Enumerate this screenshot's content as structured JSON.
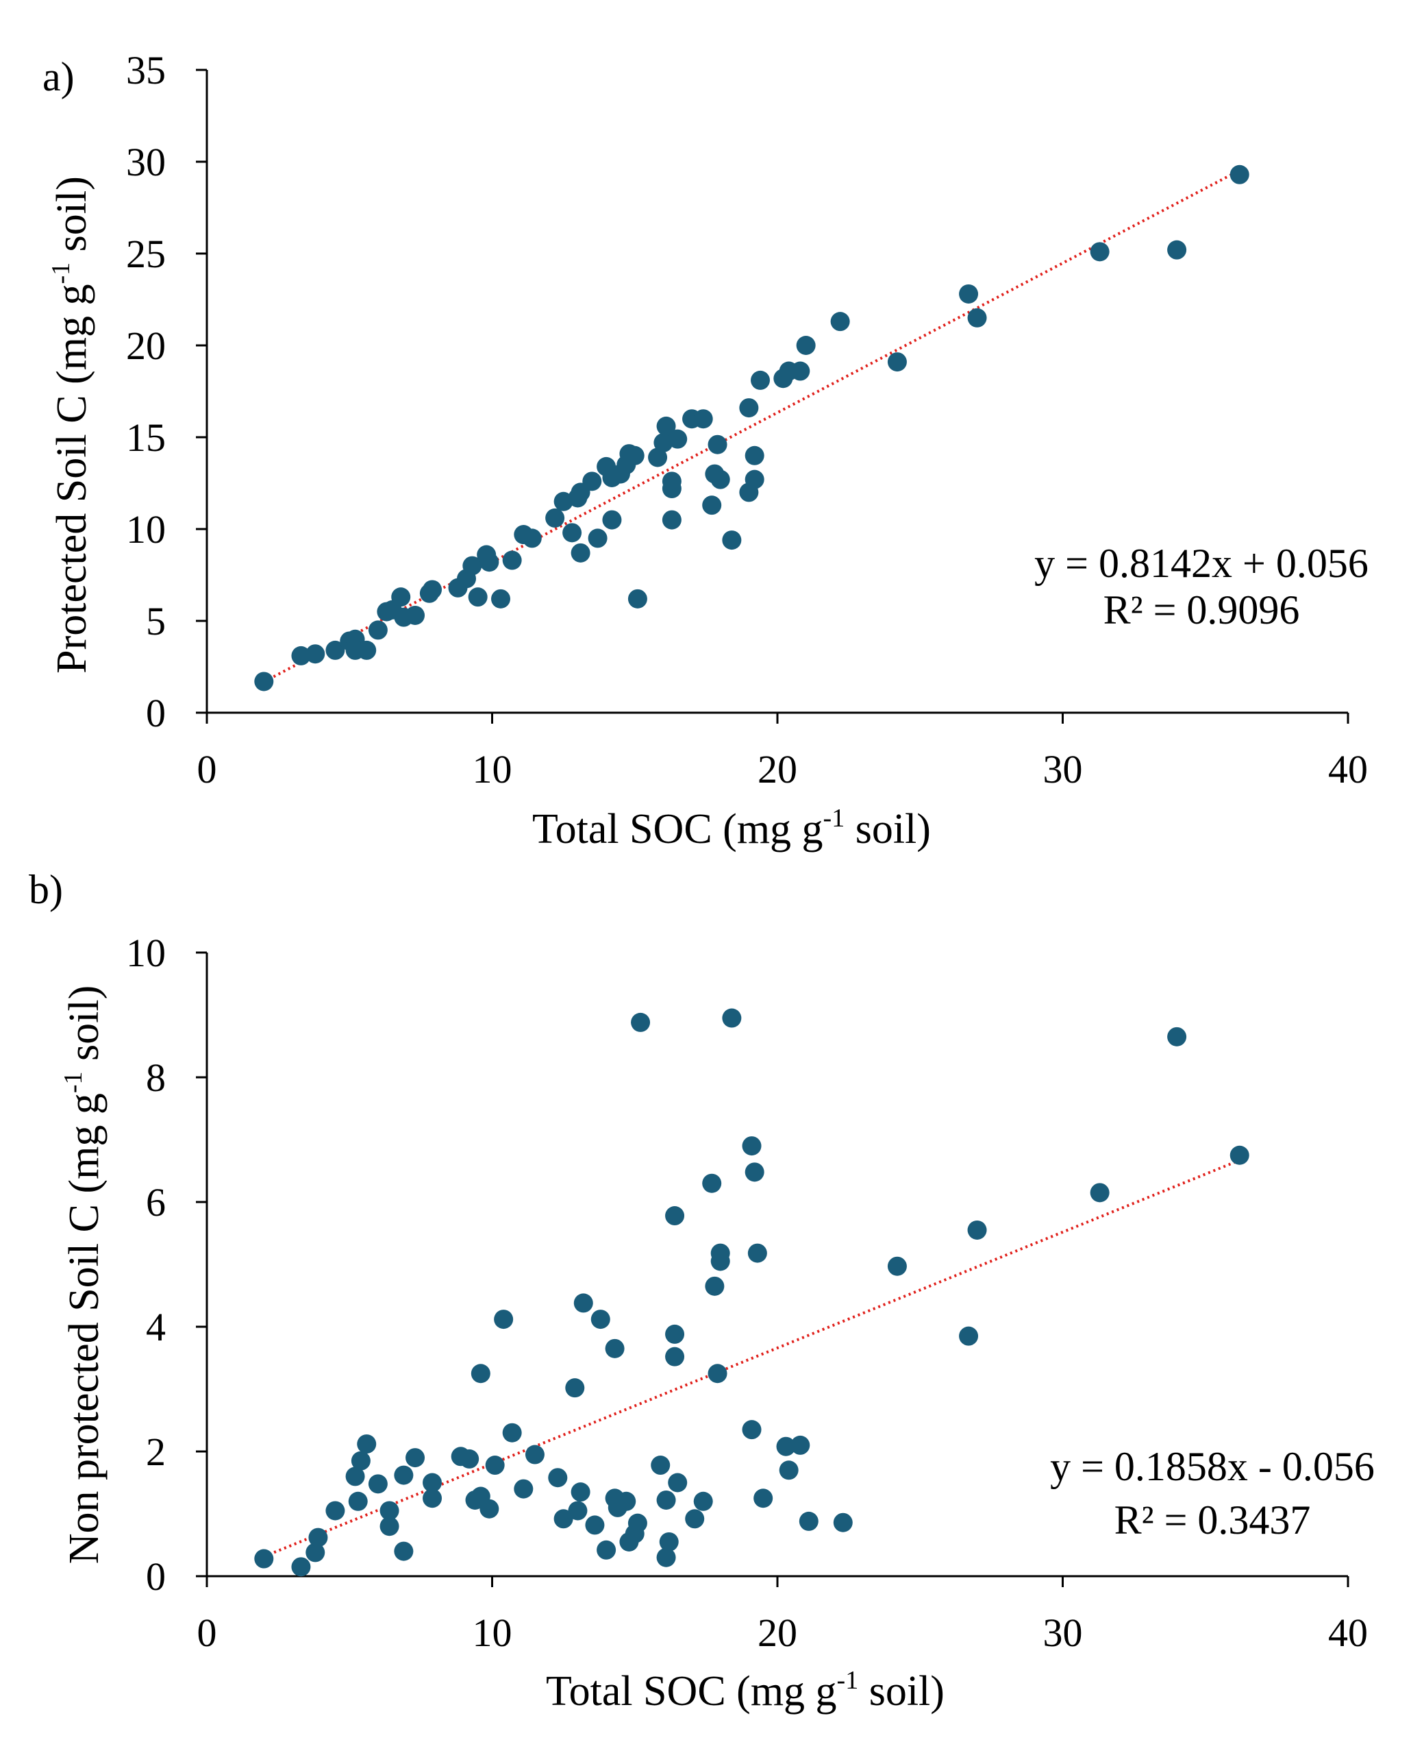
{
  "chart_data": [
    {
      "type": "scatter",
      "panel_label": "a)",
      "xlabel_pre": "Total SOC (mg g",
      "xlabel_sup": "-1",
      "xlabel_post": " soil)",
      "ylabel_pre": "Protected Soil C (mg g",
      "ylabel_sup": "-1",
      "ylabel_post": " soil)",
      "xlim": [
        0,
        40
      ],
      "ylim": [
        0,
        35
      ],
      "xticks": [
        "0",
        "10",
        "20",
        "30",
        "40"
      ],
      "yticks": [
        "0",
        "5",
        "10",
        "15",
        "20",
        "25",
        "30",
        "35"
      ],
      "marker_color": "#1a5c7a",
      "trendline_color": "#e0201b",
      "trendline": {
        "slope": 0.8142,
        "intercept": 0.056,
        "x_range": [
          2,
          36.2
        ]
      },
      "equation": "y = 0.8142x + 0.056",
      "r_squared": "R² = 0.9096",
      "points": [
        [
          2,
          1.7
        ],
        [
          3.3,
          3.1
        ],
        [
          3.8,
          3.2
        ],
        [
          4.5,
          3.4
        ],
        [
          5,
          3.9
        ],
        [
          5.2,
          4.0
        ],
        [
          5.2,
          3.4
        ],
        [
          5.6,
          3.4
        ],
        [
          6,
          4.5
        ],
        [
          6.3,
          5.5
        ],
        [
          6.5,
          5.6
        ],
        [
          6.8,
          6.3
        ],
        [
          6.9,
          5.2
        ],
        [
          7.3,
          5.3
        ],
        [
          7.8,
          6.5
        ],
        [
          7.9,
          6.7
        ],
        [
          8.8,
          6.8
        ],
        [
          9.1,
          7.3
        ],
        [
          9.3,
          8.0
        ],
        [
          9.5,
          6.3
        ],
        [
          9.8,
          8.6
        ],
        [
          9.9,
          8.2
        ],
        [
          10.3,
          6.2
        ],
        [
          10.7,
          8.3
        ],
        [
          11.1,
          9.7
        ],
        [
          11.4,
          9.5
        ],
        [
          12.2,
          10.6
        ],
        [
          12.5,
          11.5
        ],
        [
          12.8,
          9.8
        ],
        [
          13,
          11.7
        ],
        [
          13.1,
          12.0
        ],
        [
          13.1,
          8.7
        ],
        [
          13.5,
          12.6
        ],
        [
          13.7,
          9.5
        ],
        [
          14,
          13.4
        ],
        [
          14.2,
          12.8
        ],
        [
          14.2,
          10.5
        ],
        [
          14.5,
          13.0
        ],
        [
          14.7,
          13.5
        ],
        [
          14.8,
          14.1
        ],
        [
          15,
          14.0
        ],
        [
          15.1,
          6.2
        ],
        [
          15.8,
          13.9
        ],
        [
          16,
          14.7
        ],
        [
          16.1,
          15.6
        ],
        [
          16.3,
          12.2
        ],
        [
          16.3,
          12.6
        ],
        [
          16.3,
          10.5
        ],
        [
          16.5,
          14.9
        ],
        [
          17,
          16.0
        ],
        [
          17.4,
          16.0
        ],
        [
          17.7,
          11.3
        ],
        [
          17.8,
          13.0
        ],
        [
          17.9,
          14.6
        ],
        [
          18,
          12.7
        ],
        [
          18.4,
          9.4
        ],
        [
          19,
          16.6
        ],
        [
          19,
          12.0
        ],
        [
          19.2,
          12.7
        ],
        [
          19.2,
          14.0
        ],
        [
          19.4,
          18.1
        ],
        [
          20.2,
          18.2
        ],
        [
          20.4,
          18.6
        ],
        [
          20.8,
          18.6
        ],
        [
          21,
          20.0
        ],
        [
          22.2,
          21.3
        ],
        [
          24.2,
          19.1
        ],
        [
          26.7,
          22.8
        ],
        [
          27,
          21.5
        ],
        [
          31.3,
          25.1
        ],
        [
          34,
          25.2
        ],
        [
          36.2,
          29.3
        ]
      ]
    },
    {
      "type": "scatter",
      "panel_label": "b)",
      "xlabel_pre": "Total SOC (mg g",
      "xlabel_sup": "-1",
      "xlabel_post": " soil)",
      "ylabel_pre": "Non protected Soil C (mg g",
      "ylabel_sup": "-1",
      "ylabel_post": " soil)",
      "xlim": [
        0,
        40
      ],
      "ylim": [
        0,
        10
      ],
      "xticks": [
        "0",
        "10",
        "20",
        "30",
        "40"
      ],
      "yticks": [
        "0",
        "2",
        "4",
        "6",
        "8",
        "10"
      ],
      "marker_color": "#1a5c7a",
      "trendline_color": "#e0201b",
      "trendline": {
        "slope": 0.1858,
        "intercept": -0.056,
        "x_range": [
          2,
          36.2
        ]
      },
      "equation": "y = 0.1858x - 0.056",
      "r_squared": "R² = 0.3437",
      "points": [
        [
          2,
          0.28
        ],
        [
          3.3,
          0.15
        ],
        [
          3.8,
          0.38
        ],
        [
          3.9,
          0.62
        ],
        [
          4.5,
          1.05
        ],
        [
          5.2,
          1.6
        ],
        [
          5.3,
          1.2
        ],
        [
          5.4,
          1.85
        ],
        [
          5.6,
          2.12
        ],
        [
          6,
          1.48
        ],
        [
          6.4,
          1.05
        ],
        [
          6.4,
          0.8
        ],
        [
          6.9,
          1.62
        ],
        [
          6.9,
          0.4
        ],
        [
          7.3,
          1.9
        ],
        [
          7.9,
          1.5
        ],
        [
          7.9,
          1.25
        ],
        [
          8.9,
          1.92
        ],
        [
          9.2,
          1.88
        ],
        [
          9.4,
          1.22
        ],
        [
          9.6,
          1.28
        ],
        [
          9.6,
          3.25
        ],
        [
          9.9,
          1.08
        ],
        [
          10.1,
          1.78
        ],
        [
          10.4,
          4.12
        ],
        [
          10.7,
          2.3
        ],
        [
          11.1,
          1.4
        ],
        [
          11.5,
          1.95
        ],
        [
          12.3,
          1.58
        ],
        [
          12.5,
          0.92
        ],
        [
          12.9,
          3.02
        ],
        [
          13,
          1.05
        ],
        [
          13.1,
          1.35
        ],
        [
          13.2,
          4.38
        ],
        [
          13.6,
          0.82
        ],
        [
          13.8,
          4.12
        ],
        [
          14,
          0.42
        ],
        [
          14.3,
          3.65
        ],
        [
          14.3,
          1.25
        ],
        [
          14.4,
          1.1
        ],
        [
          14.7,
          1.2
        ],
        [
          14.8,
          0.55
        ],
        [
          15,
          0.68
        ],
        [
          15.1,
          0.85
        ],
        [
          15.2,
          8.88
        ],
        [
          15.9,
          1.78
        ],
        [
          16.1,
          1.22
        ],
        [
          16.1,
          0.3
        ],
        [
          16.2,
          0.55
        ],
        [
          16.4,
          3.88
        ],
        [
          16.4,
          3.52
        ],
        [
          16.4,
          5.78
        ],
        [
          16.5,
          1.5
        ],
        [
          17.1,
          0.92
        ],
        [
          17.4,
          1.2
        ],
        [
          17.7,
          6.3
        ],
        [
          17.8,
          4.65
        ],
        [
          17.9,
          3.25
        ],
        [
          18,
          5.05
        ],
        [
          18,
          5.18
        ],
        [
          18.4,
          8.95
        ],
        [
          19.1,
          6.9
        ],
        [
          19.1,
          2.35
        ],
        [
          19.2,
          6.48
        ],
        [
          19.3,
          5.18
        ],
        [
          19.5,
          1.25
        ],
        [
          20.3,
          2.08
        ],
        [
          20.4,
          1.7
        ],
        [
          20.8,
          2.1
        ],
        [
          21.1,
          0.88
        ],
        [
          22.3,
          0.86
        ],
        [
          24.2,
          4.97
        ],
        [
          26.7,
          3.85
        ],
        [
          27,
          5.55
        ],
        [
          31.3,
          6.15
        ],
        [
          34,
          8.65
        ],
        [
          36.2,
          6.75
        ]
      ]
    }
  ]
}
